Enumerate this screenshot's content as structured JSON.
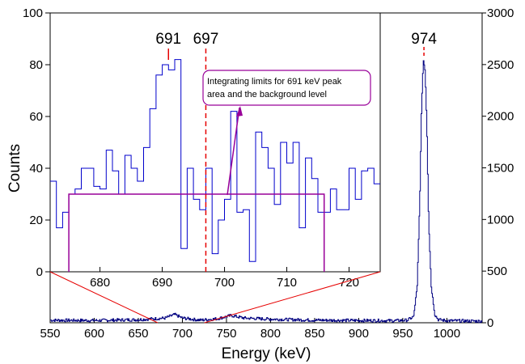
{
  "chart_data": [
    {
      "type": "line",
      "role": "main",
      "xlabel": "Energy (keV)",
      "ylabel": "Counts",
      "xlim": [
        550,
        1040
      ],
      "ylim": [
        0,
        3000
      ],
      "xticks": [
        550,
        600,
        650,
        700,
        750,
        800,
        850,
        900,
        950,
        1000
      ],
      "yticks": [
        0,
        500,
        1000,
        1500,
        2000,
        2500,
        3000
      ],
      "color": "#000080",
      "series": [
        {
          "x": [
            550,
            600,
            650,
            680,
            691,
            700,
            720,
            740,
            755,
            770,
            800,
            850,
            900,
            940,
            955,
            962,
            966,
            969,
            971,
            973,
            975,
            977,
            979,
            982,
            986,
            990,
            1000,
            1020,
            1040
          ],
          "values": [
            25,
            22,
            30,
            45,
            80,
            45,
            25,
            40,
            70,
            45,
            35,
            25,
            22,
            20,
            25,
            60,
            350,
            1200,
            2100,
            2550,
            2450,
            1900,
            1000,
            350,
            80,
            30,
            20,
            18,
            15
          ]
        }
      ],
      "annotations": [
        {
          "text": "974",
          "x": 974
        }
      ]
    },
    {
      "type": "line",
      "role": "inset",
      "ylabel": "Counts",
      "xlim": [
        672,
        725
      ],
      "ylim": [
        0,
        100
      ],
      "xticks": [
        680,
        690,
        700,
        710,
        720
      ],
      "yticks": [
        0,
        20,
        40,
        60,
        80,
        100
      ],
      "color": "#0000cc",
      "series": [
        {
          "step_x": [
            672,
            673,
            674,
            675,
            676,
            677,
            678,
            679,
            680,
            681,
            682,
            683,
            684,
            685,
            686,
            687,
            688,
            689,
            690,
            691,
            692,
            693,
            694,
            695,
            696,
            697,
            698,
            699,
            700,
            701,
            702,
            703,
            704,
            705,
            706,
            707,
            708,
            709,
            710,
            711,
            712,
            713,
            714,
            715,
            716,
            717,
            718,
            719,
            720,
            721,
            722,
            723,
            724
          ],
          "values": [
            35,
            17,
            23,
            30,
            32,
            40,
            40,
            33,
            32,
            47,
            39,
            30,
            45,
            40,
            35,
            48,
            63,
            76,
            80,
            78,
            82,
            9,
            40,
            28,
            24,
            40,
            7,
            20,
            28,
            62,
            23,
            24,
            4,
            54,
            48,
            40,
            26,
            50,
            42,
            50,
            17,
            44,
            36,
            23,
            23,
            32,
            24,
            24,
            40,
            28,
            39,
            40,
            34
          ]
        }
      ],
      "annotations": [
        {
          "text": "691",
          "x": 691
        },
        {
          "text": "697",
          "x": 697
        },
        {
          "text": "Integrating limits for 691 keV peak area and the background level",
          "lines": [
            "Integrating limits for 691 keV peak",
            "area and the background level"
          ]
        }
      ],
      "integration_box": {
        "x0": 675,
        "x1": 716,
        "y": 30
      },
      "colors": {
        "box": "#990099",
        "marker": "#e60000"
      }
    }
  ]
}
